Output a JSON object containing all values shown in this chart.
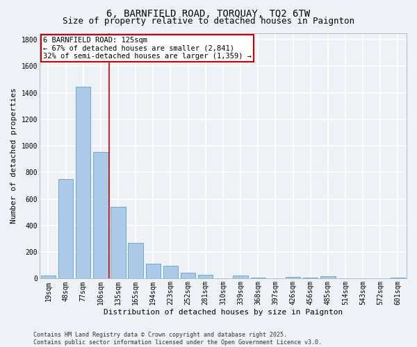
{
  "title1": "6, BARNFIELD ROAD, TORQUAY, TQ2 6TW",
  "title2": "Size of property relative to detached houses in Paignton",
  "xlabel": "Distribution of detached houses by size in Paignton",
  "ylabel": "Number of detached properties",
  "categories": [
    "19sqm",
    "48sqm",
    "77sqm",
    "106sqm",
    "135sqm",
    "165sqm",
    "194sqm",
    "223sqm",
    "252sqm",
    "281sqm",
    "310sqm",
    "339sqm",
    "368sqm",
    "397sqm",
    "426sqm",
    "456sqm",
    "485sqm",
    "514sqm",
    "543sqm",
    "572sqm",
    "601sqm"
  ],
  "values": [
    22,
    748,
    1443,
    951,
    538,
    271,
    113,
    95,
    43,
    28,
    0,
    22,
    5,
    0,
    13,
    5,
    18,
    3,
    3,
    0,
    5
  ],
  "bar_color": "#adc9e8",
  "bar_edge_color": "#6aaad4",
  "background_color": "#eef2f7",
  "grid_color": "#ffffff",
  "vline_x": 3.5,
  "vline_color": "#cc0000",
  "annotation_text": "6 BARNFIELD ROAD: 125sqm\n← 67% of detached houses are smaller (2,841)\n32% of semi-detached houses are larger (1,359) →",
  "annotation_box_color": "#ffffff",
  "annotation_box_edge": "#cc0000",
  "ylim": [
    0,
    1850
  ],
  "yticks": [
    0,
    200,
    400,
    600,
    800,
    1000,
    1200,
    1400,
    1600,
    1800
  ],
  "footer": "Contains HM Land Registry data © Crown copyright and database right 2025.\nContains public sector information licensed under the Open Government Licence v3.0.",
  "title_fontsize": 10,
  "subtitle_fontsize": 9,
  "axis_label_fontsize": 8,
  "tick_fontsize": 7,
  "annotation_fontsize": 7.5,
  "footer_fontsize": 6
}
